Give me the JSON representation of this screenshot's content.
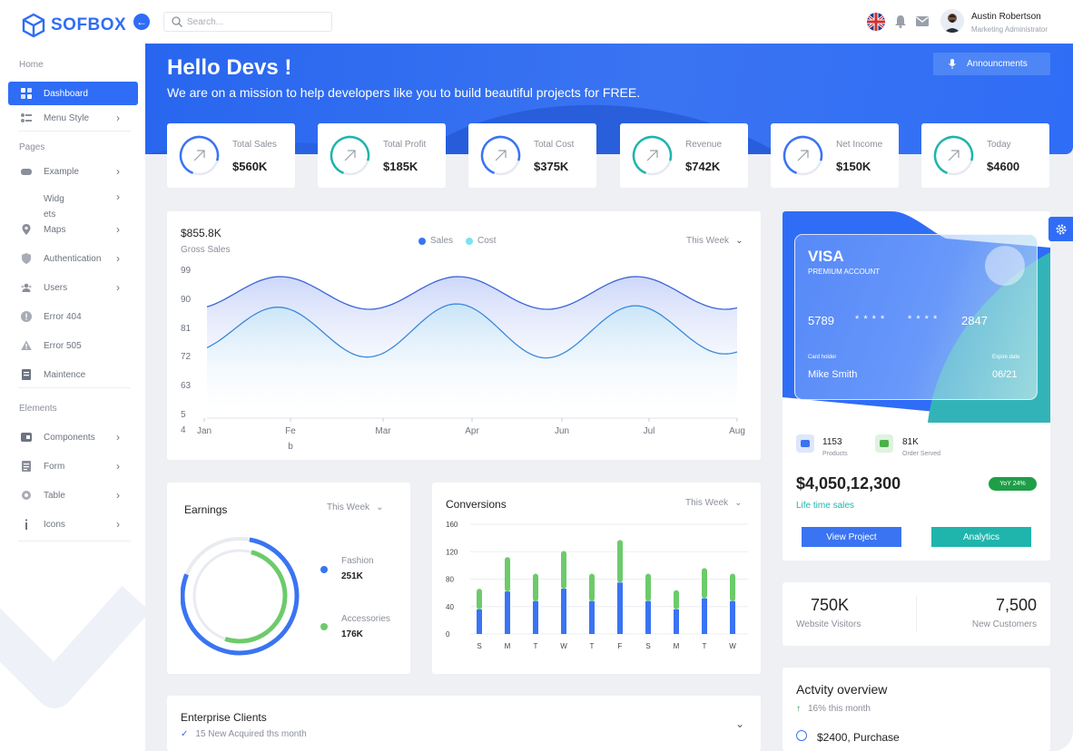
{
  "brand": {
    "name": "SOFBOX"
  },
  "search": {
    "placeholder": "Search..."
  },
  "user": {
    "name": "Austin Robertson",
    "role": "Marketing Administrator"
  },
  "sidebar": {
    "sections": [
      "Home",
      "Pages",
      "Elements"
    ],
    "home_items": [
      {
        "label": "Dashboard",
        "icon": "grid-icon",
        "active": true
      },
      {
        "label": "Menu Style",
        "icon": "menu-style-icon",
        "chevron": true
      }
    ],
    "page_items": [
      {
        "label": "Example",
        "icon": "gamepad-icon",
        "chevron": true
      },
      {
        "label": "Widg\nets",
        "icon": "widgets-icon",
        "chevron": true
      },
      {
        "label": "Maps",
        "icon": "map-pin-icon",
        "chevron": true
      },
      {
        "label": "Authentication",
        "icon": "shield-icon",
        "chevron": true
      },
      {
        "label": "Users",
        "icon": "users-icon",
        "chevron": true
      },
      {
        "label": "Error 404",
        "icon": "alert-circle-icon"
      },
      {
        "label": "Error 505",
        "icon": "warning-icon"
      },
      {
        "label": "Maintence",
        "icon": "maintenance-icon"
      }
    ],
    "element_items": [
      {
        "label": "Components",
        "icon": "components-icon",
        "chevron": true
      },
      {
        "label": "Form",
        "icon": "form-icon",
        "chevron": true
      },
      {
        "label": "Table",
        "icon": "table-icon",
        "chevron": true
      },
      {
        "label": "Icons",
        "icon": "info-icon",
        "chevron": true
      }
    ]
  },
  "banner": {
    "title": "Hello Devs !",
    "subtitle": "We are on a mission to help developers like you to build beautiful projects for FREE.",
    "announce_label": "Announcments"
  },
  "stats": [
    {
      "label": "Total Sales",
      "value": "$560K",
      "color": "#3a74f2"
    },
    {
      "label": "Total Profit",
      "value": "$185K",
      "color": "#1fb5ad"
    },
    {
      "label": "Total Cost",
      "value": "$375K",
      "color": "#3a74f2"
    },
    {
      "label": "Revenue",
      "value": "$742K",
      "color": "#1fb5ad"
    },
    {
      "label": "Net Income",
      "value": "$150K",
      "color": "#3a74f2"
    },
    {
      "label": "Today",
      "value": "$4600",
      "color": "#1fb5ad"
    }
  ],
  "gross": {
    "value": "$855.8K",
    "label": "Gross Sales",
    "period": "This Week"
  },
  "chart_data": [
    {
      "type": "area",
      "title": "",
      "series": [
        {
          "name": "Sales",
          "color": "#3a74f2"
        },
        {
          "name": "Cost",
          "color": "#5ad7f0"
        }
      ],
      "y_ticks": [
        "99",
        "90",
        "81",
        "72",
        "63",
        "5\n4"
      ],
      "x_ticks": [
        "Jan",
        "Fe\nb",
        "Mar",
        "Apr",
        "Jun",
        "Jul",
        "Aug"
      ]
    },
    {
      "type": "bar",
      "title": "Conversions",
      "categories": [
        "S",
        "M",
        "T",
        "W",
        "T",
        "F",
        "S",
        "M",
        "T",
        "W"
      ],
      "series": [
        {
          "name": "",
          "color": "#3a74f2",
          "values": [
            36,
            62,
            48,
            66,
            48,
            75,
            48,
            36,
            52,
            48
          ]
        },
        {
          "name": "",
          "color": "#6ccb6a",
          "values": [
            30,
            50,
            40,
            55,
            40,
            62,
            40,
            28,
            44,
            40
          ]
        }
      ],
      "ylim": [
        0,
        160
      ],
      "y_ticks": [
        "160",
        "120",
        "80",
        "40",
        "0"
      ]
    }
  ],
  "earnings": {
    "title": "Earnings",
    "period": "This Week",
    "items": [
      {
        "label": "Fashion",
        "value": "251K",
        "color": "#3a74f2"
      },
      {
        "label": "Accessories",
        "value": "176K",
        "color": "#6ccb6a"
      }
    ]
  },
  "conversions": {
    "title": "Conversions",
    "period": "This Week"
  },
  "visa": {
    "brand": "VISA",
    "account": "PREMIUM ACCOUNT",
    "number": [
      "5789",
      "* * * *",
      "* * * *",
      "2847"
    ],
    "holder_label": "Card holder",
    "holder": "Mike Smith",
    "expire_label": "Expire date",
    "expire": "06/21"
  },
  "project": {
    "products_count": "1153",
    "products_label": "Products",
    "served_count": "81K",
    "served_label": "Order Served",
    "lifetime": "$4,050,12,300",
    "lifetime_label": "Life time sales",
    "yoy": "YoY 24%",
    "view_label": "View Project",
    "analytics_label": "Analytics"
  },
  "visitors": {
    "value": "750K",
    "label": "Website Visitors",
    "customers_value": "7,500",
    "customers_label": "New Customers"
  },
  "enterprise": {
    "title": "Enterprise Clients",
    "sub": "15 New Acquired ths month"
  },
  "activity": {
    "title": "Actvity overview",
    "sub": "16% this month",
    "item": "$2400, Purchase"
  }
}
